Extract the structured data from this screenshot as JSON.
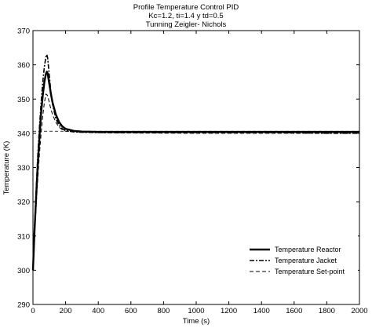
{
  "chart_data": {
    "type": "line",
    "title": [
      "Profile Temperature Control PID",
      "Kc=1.2, ti=1.4 y td=0.5",
      "Tunning Zeigler- Nichols"
    ],
    "xlabel": "Time (s)",
    "ylabel": "Temperature (K)",
    "xlim": [
      0,
      2000
    ],
    "ylim": [
      290,
      370
    ],
    "xticks": [
      0,
      200,
      400,
      600,
      800,
      1000,
      1200,
      1400,
      1600,
      1800,
      2000
    ],
    "yticks": [
      290,
      300,
      310,
      320,
      330,
      340,
      350,
      360,
      370
    ],
    "grid": false,
    "legend_position": "bottom-right",
    "series": [
      {
        "name": "Temperature Reactor",
        "style": "solid-thick",
        "x": [
          0,
          10,
          20,
          30,
          40,
          50,
          60,
          70,
          80,
          85,
          90,
          100,
          110,
          120,
          140,
          160,
          180,
          200,
          250,
          300,
          400,
          600,
          1000,
          1500,
          2000
        ],
        "y": [
          300,
          312,
          322,
          331,
          339,
          346,
          351,
          355,
          357.5,
          358,
          357.5,
          354.5,
          351.5,
          349,
          345.5,
          343.3,
          342,
          341.3,
          340.7,
          340.5,
          340.4,
          340.4,
          340.4,
          340.4,
          340.4
        ]
      },
      {
        "name": "Temperature Jacket",
        "style": "dash-dot",
        "x": [
          0,
          10,
          20,
          30,
          40,
          50,
          60,
          70,
          80,
          85,
          90,
          100,
          110,
          120,
          140,
          160,
          180,
          200,
          250,
          300,
          400,
          600,
          1000,
          1500,
          1800,
          2000
        ],
        "y": [
          300,
          313,
          324,
          334,
          342,
          349,
          355,
          359.5,
          362.5,
          363,
          362,
          357,
          352,
          348.5,
          344.3,
          342.3,
          341.3,
          340.8,
          340.4,
          340.3,
          340.2,
          340.2,
          340.2,
          340.2,
          340,
          340
        ]
      },
      {
        "name": "Temperature Set-point",
        "style": "dashed",
        "x": [
          0,
          10,
          20,
          30,
          40,
          50,
          60,
          70,
          80,
          90,
          100,
          110,
          120,
          140,
          160,
          180,
          200,
          300,
          500,
          1000,
          2000
        ],
        "y": [
          300,
          310,
          319,
          327,
          334,
          340,
          345,
          349,
          351.5,
          351,
          349,
          347,
          345.5,
          343.2,
          341.8,
          341,
          340.6,
          340.3,
          340.1,
          340,
          340
        ]
      },
      {
        "name": "",
        "style": "thin-dashed-reference",
        "x": [
          0,
          2000
        ],
        "y": [
          340.6,
          340.6
        ]
      }
    ]
  }
}
